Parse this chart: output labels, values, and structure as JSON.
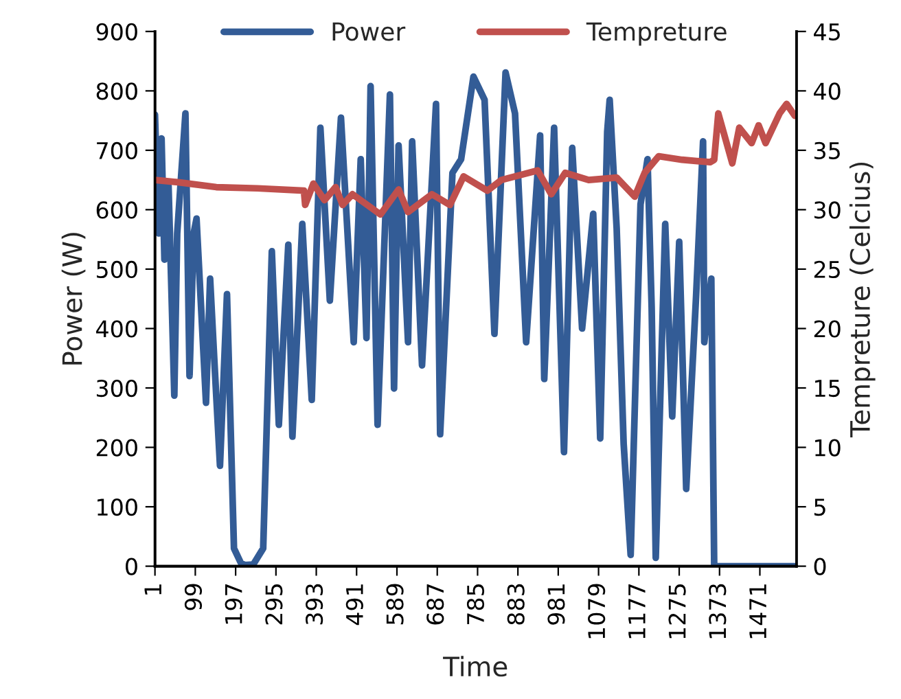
{
  "chart_data": {
    "type": "line",
    "xlabel": "Time",
    "ylabel": "Power (W)",
    "y2label": "Tempreture (Celcius)",
    "xlim": [
      1,
      1560
    ],
    "xticks": [
      1,
      99,
      197,
      295,
      393,
      491,
      589,
      687,
      785,
      883,
      981,
      1079,
      1177,
      1275,
      1373,
      1471
    ],
    "ylim": [
      0,
      900
    ],
    "yticks": [
      0,
      100,
      200,
      300,
      400,
      500,
      600,
      700,
      800,
      900
    ],
    "y2lim": [
      0,
      45
    ],
    "y2ticks": [
      0,
      5,
      10,
      15,
      20,
      25,
      30,
      35,
      40,
      45
    ],
    "legend": "top",
    "grid": false,
    "marker": "none",
    "line_style": "solid",
    "series": [
      {
        "name": "Power",
        "color": "#335c96",
        "x": [
          1,
          10,
          17,
          24,
          34,
          48,
          55,
          75,
          85,
          95,
          102,
          125,
          135,
          145,
          159,
          176,
          193,
          210,
          220,
          240,
          264,
          285,
          302,
          325,
          335,
          359,
          382,
          403,
          426,
          453,
          484,
          501,
          515,
          525,
          542,
          572,
          582,
          593,
          616,
          626,
          650,
          684,
          694,
          724,
          745,
          775,
          802,
          826,
          853,
          876,
          903,
          937,
          947,
          971,
          995,
          1015,
          1039,
          1066,
          1083,
          1100,
          1106,
          1123,
          1140,
          1157,
          1181,
          1198,
          1208,
          1218,
          1241,
          1258,
          1275,
          1292,
          1316,
          1333,
          1336,
          1353,
          1360,
          1367,
          1368,
          1556
        ],
        "values": [
          760,
          560,
          720,
          516,
          640,
          287,
          560,
          762,
          320,
          560,
          585,
          275,
          484,
          350,
          169,
          458,
          30,
          5,
          2,
          3,
          30,
          530,
          238,
          541,
          218,
          576,
          280,
          738,
          447,
          755,
          377,
          685,
          384,
          808,
          238,
          794,
          299,
          708,
          377,
          715,
          338,
          778,
          222,
          662,
          685,
          824,
          785,
          391,
          831,
          762,
          377,
          725,
          315,
          738,
          192,
          704,
          400,
          593,
          215,
          731,
          785,
          569,
          206,
          19,
          609,
          685,
          437,
          14,
          576,
          252,
          546,
          130,
          454,
          715,
          377,
          484,
          2,
          0,
          0,
          0
        ]
      },
      {
        "name": "Tempreture",
        "color": "#c0504d",
        "axis": "y2",
        "x": [
          1,
          60,
          150,
          250,
          363,
          366,
          386,
          413,
          440,
          457,
          481,
          549,
          593,
          616,
          674,
          718,
          751,
          809,
          843,
          931,
          964,
          998,
          1055,
          1123,
          1167,
          1191,
          1225,
          1282,
          1350,
          1360,
          1370,
          1404,
          1421,
          1451,
          1468,
          1485,
          1519,
          1536,
          1556
        ],
        "values": [
          32.5,
          32.3,
          31.9,
          31.8,
          31.6,
          30.4,
          32.2,
          30.8,
          31.9,
          30.4,
          31.3,
          29.6,
          31.7,
          29.8,
          31.3,
          30.4,
          32.8,
          31.6,
          32.5,
          33.3,
          31.3,
          33.1,
          32.5,
          32.7,
          31.1,
          33.1,
          34.5,
          34.2,
          34.0,
          34.2,
          38.1,
          33.9,
          36.9,
          35.6,
          37.1,
          35.6,
          38.1,
          38.9,
          37.9
        ]
      }
    ]
  }
}
